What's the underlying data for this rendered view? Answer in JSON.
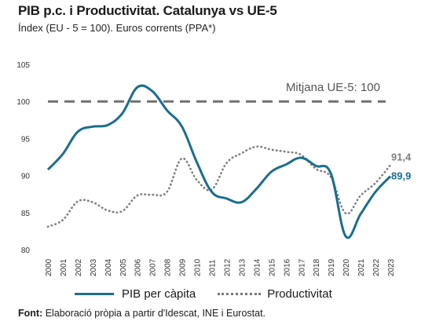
{
  "title": "PIB p.c. i Productivitat. Catalunya vs UE-5",
  "subtitle": "Índex (EU - 5 = 100). Euros corrents (PPA*)",
  "source_label": "Font:",
  "source_text": "Elaboració pròpia a partir d'Idescat, INE i Eurostat.",
  "colors": {
    "pib": "#1a6e8e",
    "productivitat": "#7f7f7f",
    "reference": "#707070"
  },
  "chart_data": {
    "type": "line",
    "x": [
      "2000",
      "2001",
      "2002",
      "2003",
      "2004",
      "2005",
      "2006",
      "2007",
      "2008",
      "2009",
      "2010",
      "2011",
      "2012",
      "2013",
      "2014",
      "2015",
      "2016",
      "2017",
      "2018",
      "2019",
      "2020",
      "2021",
      "2022",
      "2023"
    ],
    "ylim": [
      80,
      105
    ],
    "yticks": [
      "80",
      "85",
      "90",
      "95",
      "100",
      "105"
    ],
    "grid": false,
    "legend_position": "bottom",
    "series": [
      {
        "name": "PIB per càpita",
        "values": [
          90.8,
          92.9,
          95.9,
          96.6,
          96.8,
          98.4,
          101.9,
          101.4,
          98.8,
          96.6,
          91.8,
          87.8,
          86.9,
          86.4,
          88.2,
          90.5,
          91.5,
          92.4,
          91.3,
          90.3,
          81.8,
          84.8,
          87.8,
          89.9
        ]
      },
      {
        "name": "Productivitat",
        "values": [
          83.1,
          84.0,
          86.5,
          86.4,
          85.3,
          85.2,
          87.3,
          87.4,
          87.8,
          92.3,
          89.4,
          88.1,
          91.7,
          93.0,
          93.9,
          93.5,
          93.2,
          92.8,
          90.9,
          89.8,
          84.9,
          87.3,
          89.0,
          91.4
        ]
      }
    ],
    "reference_line": {
      "value": 100,
      "label": "Mitjana UE-5: 100"
    },
    "end_labels": {
      "pib": "89,9",
      "productivitat": "91,4"
    }
  }
}
